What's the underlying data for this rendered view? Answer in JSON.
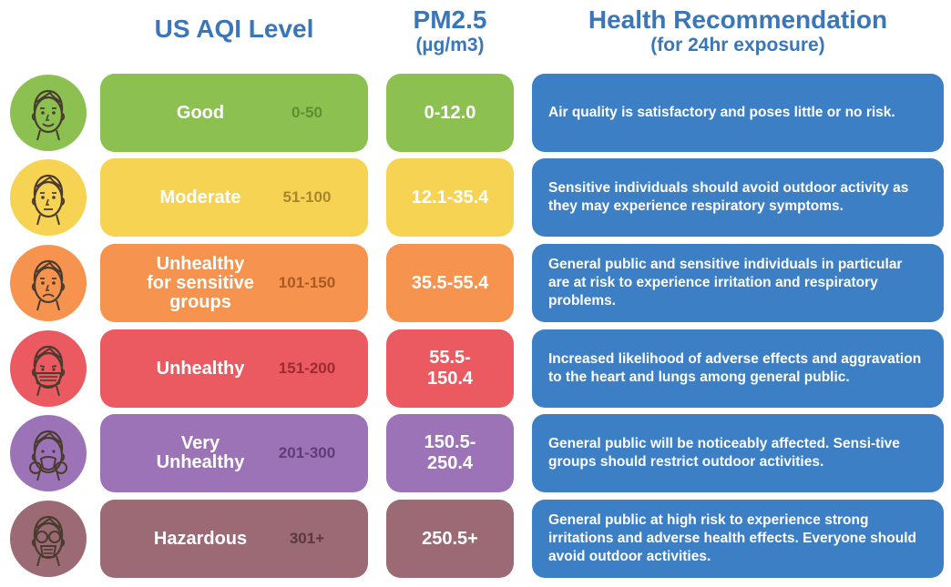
{
  "headers": {
    "aqi": "US AQI Level",
    "pm_line1": "PM2.5",
    "pm_line2": "(µg/m3)",
    "health_line1": "Health Recommendation",
    "health_line2": "(for 24hr exposure)"
  },
  "rows": [
    {
      "level": "Good",
      "range": "0-50",
      "pm": "0-12.0",
      "recommendation": "Air quality is satisfactory and poses little or no risk.",
      "face_icon": "smiling-face-icon",
      "colors": {
        "face": "#8cc152",
        "level": "#8cc152",
        "range_text": "#5e8f2e",
        "pm": "#8cc152"
      }
    },
    {
      "level": "Moderate",
      "range": "51-100",
      "pm": "12.1-35.4",
      "recommendation": "Sensitive individuals should avoid outdoor activity as they may experience respiratory symptoms.",
      "face_icon": "neutral-face-icon",
      "colors": {
        "face": "#f7d354",
        "level": "#f7d354",
        "range_text": "#a8872c",
        "pm": "#f7d354"
      }
    },
    {
      "level": "Unhealthy\nfor sensitive\ngroups",
      "range": "101-150",
      "pm": "35.5-55.4",
      "recommendation": "General public and sensitive individuals in particular are at risk to experience irritation and respiratory problems.",
      "face_icon": "sad-face-icon",
      "colors": {
        "face": "#f6934e",
        "level": "#f6934e",
        "range_text": "#a85a24",
        "pm": "#f6934e"
      }
    },
    {
      "level": "Unhealthy",
      "range": "151-200",
      "pm": "55.5-\n150.4",
      "recommendation": "Increased likelihood of adverse effects and aggravation to the heart and lungs among general public.",
      "face_icon": "face-mask-icon",
      "colors": {
        "face": "#ec5a61",
        "level": "#ec5a61",
        "range_text": "#9e2a31",
        "pm": "#ec5a61"
      }
    },
    {
      "level": "Very\nUnhealthy",
      "range": "201-300",
      "pm": "150.5-\n250.4",
      "recommendation": "General public will be noticeably affected. Sensi-tive groups should restrict outdoor activities.",
      "face_icon": "respirator-face-icon",
      "colors": {
        "face": "#9d73b8",
        "level": "#9d73b8",
        "range_text": "#5e3d76",
        "pm": "#9d73b8"
      }
    },
    {
      "level": "Hazardous",
      "range": "301+",
      "pm": "250.5+",
      "recommendation": "General public at high risk to experience strong irritations and adverse health effects. Everyone should avoid outdoor activities.",
      "face_icon": "gas-mask-icon",
      "colors": {
        "face": "#9b6a74",
        "level": "#9b6a74",
        "range_text": "#5c3640",
        "pm": "#9b6a74"
      }
    }
  ]
}
